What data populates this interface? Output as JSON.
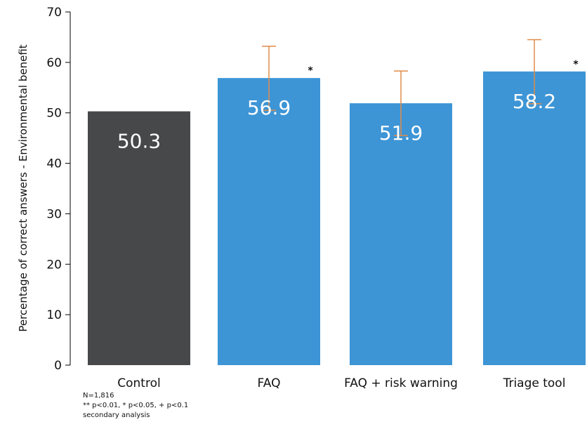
{
  "chart_data": {
    "type": "bar",
    "categories": [
      "Control",
      "FAQ",
      "FAQ + risk warning",
      "Triage tool"
    ],
    "values": [
      50.3,
      56.9,
      51.9,
      58.2
    ],
    "value_labels": [
      "50.3",
      "56.9",
      "51.9",
      "58.2"
    ],
    "error_bars": [
      null,
      [
        50.5,
        63.2
      ],
      [
        45.5,
        58.3
      ],
      [
        51.8,
        64.5
      ]
    ],
    "significance": [
      "",
      "*",
      "",
      "*"
    ],
    "bar_colors": [
      "#47484a",
      "#3d95d6",
      "#3d95d6",
      "#3d95d6"
    ],
    "error_bar_color": "#e08c4a",
    "ylabel": "Percentage of correct answers - Environmental benefit",
    "xlabel": "",
    "ylim": [
      0,
      70
    ],
    "yticks": [
      0,
      10,
      20,
      30,
      40,
      50,
      60,
      70
    ],
    "grid": false,
    "notes": [
      "N=1,816",
      "** p<0.01, * p<0.05, + p<0.1",
      "secondary analysis"
    ]
  }
}
